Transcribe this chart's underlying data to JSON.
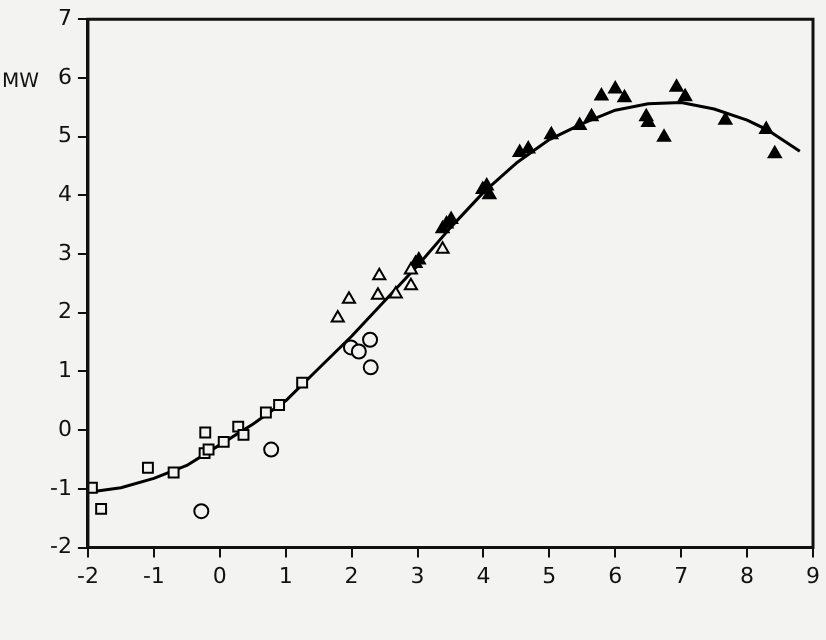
{
  "chart_data": {
    "type": "scatter",
    "ylabel": "MW",
    "xlim": [
      -2,
      9
    ],
    "ylim": [
      -2,
      7
    ],
    "xticks": [
      -2,
      -1,
      0,
      1,
      2,
      3,
      4,
      5,
      6,
      7,
      8,
      9
    ],
    "yticks": [
      -2,
      -1,
      0,
      1,
      2,
      3,
      4,
      5,
      6,
      7
    ],
    "grid": false,
    "legend": false,
    "series": [
      {
        "color": "#000000",
        "marker": "square",
        "x": [
          -1.94,
          -1.8,
          -1.09,
          -0.7,
          -0.22,
          -0.23,
          -0.17,
          0.06,
          0.28,
          0.36,
          0.7,
          0.9,
          1.25
        ],
        "values": [
          -0.98,
          -1.34,
          -0.64,
          -0.72,
          -0.04,
          -0.39,
          -0.33,
          -0.2,
          0.06,
          -0.08,
          0.3,
          0.43,
          0.81
        ]
      },
      {
        "color": "#000000",
        "marker": "circle",
        "x": [
          -0.28,
          0.78,
          1.99,
          2.11,
          2.28,
          2.29
        ],
        "values": [
          -1.38,
          -0.33,
          1.41,
          1.34,
          1.54,
          1.07
        ]
      },
      {
        "color": "#000000",
        "marker": "triangle",
        "x": [
          1.79,
          1.96,
          2.42,
          2.4,
          2.67,
          2.9,
          2.9,
          3.38
        ],
        "values": [
          1.91,
          2.23,
          2.63,
          2.3,
          2.32,
          2.46,
          2.73,
          3.08
        ]
      },
      {
        "color": "#000000",
        "marker": "triangle",
        "x": [
          2.97,
          3.02,
          3.38,
          3.44,
          3.51,
          3.99,
          4.05,
          4.09,
          4.55,
          4.68,
          5.03,
          5.46,
          5.64,
          5.79,
          6.0,
          6.14,
          6.47,
          6.5,
          6.74,
          6.93,
          7.06,
          7.67,
          8.29,
          8.42
        ],
        "values": [
          2.84,
          2.9,
          3.43,
          3.51,
          3.59,
          4.1,
          4.16,
          4.01,
          4.73,
          4.79,
          5.03,
          5.19,
          5.34,
          5.69,
          5.81,
          5.66,
          5.34,
          5.24,
          4.99,
          5.84,
          5.68,
          5.28,
          5.12,
          4.71
        ]
      },
      {
        "type": "line",
        "color": "#000000",
        "marker": "none",
        "line_style": "solid",
        "x": [
          -1.94,
          -1.5,
          -1,
          -0.5,
          0,
          0.5,
          1,
          1.5,
          2,
          2.5,
          3,
          3.5,
          4,
          4.5,
          5,
          5.5,
          6,
          6.5,
          7,
          7.5,
          8,
          8.3,
          8.8
        ],
        "values": [
          -1.05,
          -0.98,
          -0.82,
          -0.6,
          -0.25,
          0.1,
          0.5,
          1.05,
          1.6,
          2.2,
          2.8,
          3.45,
          4.05,
          4.55,
          4.95,
          5.22,
          5.45,
          5.56,
          5.58,
          5.47,
          5.28,
          5.12,
          4.75
        ]
      }
    ]
  }
}
